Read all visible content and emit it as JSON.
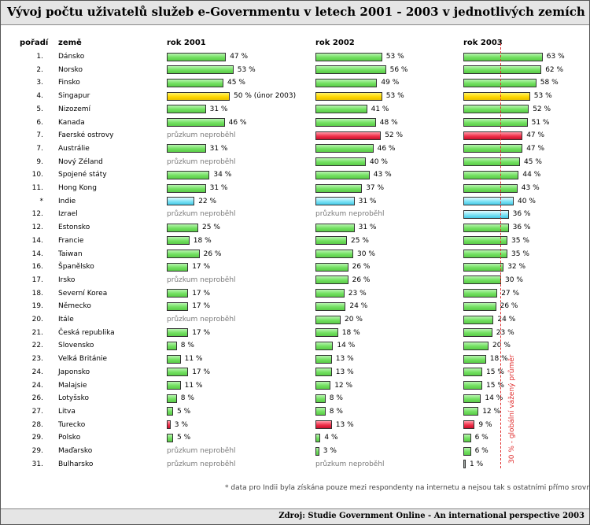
{
  "title": "Vývoj počtu uživatelů služeb e-Governmentu v letech 2001 - 2003 v jednotlivých zemích",
  "source": "Zdroj: Studie Government Online - An international perspective 2003",
  "footnote": "* data pro Indii byla získána pouze mezi respondenty na internetu a nejsou tak s ostatními přímo srovnatelná",
  "not_surveyed_label": "průzkum neproběhl",
  "colors": {
    "default": "#72e060",
    "singapore": "#ffd800",
    "highlight": "#f0304a",
    "india": "#7fe3f5",
    "minimal": "#9aa4a0",
    "average_line": "#e03030"
  },
  "chart_data": {
    "type": "bar",
    "title": "Vývoj počtu uživatelů služeb e-Governmentu v letech 2001 - 2003 v jednotlivých zemích",
    "headers": {
      "rank": "pořadí",
      "country": "země",
      "y2001": "rok 2001",
      "y2002": "rok 2002",
      "y2003": "rok 2003"
    },
    "unit": "%",
    "xlim": [
      0,
      70
    ],
    "average_line": {
      "value": 30,
      "label": "30 % - globální vážený průměr"
    },
    "rows": [
      {
        "rank": "1.",
        "country": "Dánsko",
        "color": "green",
        "v2001": 47,
        "v2002": 53,
        "v2003": 63
      },
      {
        "rank": "2.",
        "country": "Norsko",
        "color": "green",
        "v2001": 53,
        "v2002": 56,
        "v2003": 62
      },
      {
        "rank": "3.",
        "country": "Finsko",
        "color": "green",
        "v2001": 45,
        "v2002": 49,
        "v2003": 58
      },
      {
        "rank": "4.",
        "country": "Singapur",
        "color": "yellow",
        "v2001": 50,
        "note2001": "(únor 2003)",
        "v2002": 53,
        "v2003": 53
      },
      {
        "rank": "5.",
        "country": "Nizozemí",
        "color": "green",
        "v2001": 31,
        "v2002": 41,
        "v2003": 52
      },
      {
        "rank": "6.",
        "country": "Kanada",
        "color": "green",
        "v2001": 46,
        "v2002": 48,
        "v2003": 51
      },
      {
        "rank": "7.",
        "country": "Faerské ostrovy",
        "color": "red",
        "v2001": null,
        "v2002": 52,
        "v2003": 47
      },
      {
        "rank": "7.",
        "country": "Austrálie",
        "color": "green",
        "v2001": 31,
        "v2002": 46,
        "v2003": 47
      },
      {
        "rank": "9.",
        "country": "Nový Zéland",
        "color": "green",
        "v2001": null,
        "v2002": 40,
        "v2003": 45
      },
      {
        "rank": "10.",
        "country": "Spojené státy",
        "color": "green",
        "v2001": 34,
        "v2002": 43,
        "v2003": 44
      },
      {
        "rank": "11.",
        "country": "Hong Kong",
        "color": "green",
        "v2001": 31,
        "v2002": 37,
        "v2003": 43
      },
      {
        "rank": "*",
        "country": "Indie",
        "color": "cyan",
        "v2001": 22,
        "v2002": 31,
        "v2003": 40
      },
      {
        "rank": "12.",
        "country": "Izrael",
        "color": "cyan",
        "v2001": null,
        "v2002": null,
        "v2003": 36
      },
      {
        "rank": "12.",
        "country": "Estonsko",
        "color": "green",
        "v2001": 25,
        "v2002": 31,
        "v2003": 36
      },
      {
        "rank": "14.",
        "country": "Francie",
        "color": "green",
        "v2001": 18,
        "v2002": 25,
        "v2003": 35
      },
      {
        "rank": "14.",
        "country": "Taiwan",
        "color": "green",
        "v2001": 26,
        "v2002": 30,
        "v2003": 35
      },
      {
        "rank": "16.",
        "country": "Španělsko",
        "color": "green",
        "v2001": 17,
        "v2002": 26,
        "v2003": 32
      },
      {
        "rank": "17.",
        "country": "Irsko",
        "color": "green",
        "v2001": null,
        "v2002": 26,
        "v2003": 30
      },
      {
        "rank": "18.",
        "country": "Severní Korea",
        "color": "green",
        "v2001": 17,
        "v2002": 23,
        "v2003": 27
      },
      {
        "rank": "19.",
        "country": "Německo",
        "color": "green",
        "v2001": 17,
        "v2002": 24,
        "v2003": 26
      },
      {
        "rank": "20.",
        "country": "Itále",
        "color": "green",
        "v2001": null,
        "v2002": 20,
        "v2003": 24
      },
      {
        "rank": "21.",
        "country": "Česká republika",
        "color": "green",
        "v2001": 17,
        "v2002": 18,
        "v2003": 23
      },
      {
        "rank": "22.",
        "country": "Slovensko",
        "color": "green",
        "v2001": 8,
        "v2002": 14,
        "v2003": 20
      },
      {
        "rank": "23.",
        "country": "Velká Británie",
        "color": "green",
        "v2001": 11,
        "v2002": 13,
        "v2003": 18
      },
      {
        "rank": "24.",
        "country": "Japonsko",
        "color": "green",
        "v2001": 17,
        "v2002": 13,
        "v2003": 15
      },
      {
        "rank": "24.",
        "country": "Malajsie",
        "color": "green",
        "v2001": 11,
        "v2002": 12,
        "v2003": 15
      },
      {
        "rank": "26.",
        "country": "Lotyšsko",
        "color": "green",
        "v2001": 8,
        "v2002": 8,
        "v2003": 14
      },
      {
        "rank": "27.",
        "country": "Litva",
        "color": "green",
        "v2001": 5,
        "v2002": 8,
        "v2003": 12
      },
      {
        "rank": "28.",
        "country": "Turecko",
        "color": "red",
        "v2001": 3,
        "v2002": 13,
        "v2003": 9
      },
      {
        "rank": "29.",
        "country": "Polsko",
        "color": "green",
        "v2001": 5,
        "v2002": 4,
        "v2003": 6
      },
      {
        "rank": "29.",
        "country": "Maďarsko",
        "color": "green",
        "v2001": null,
        "v2002": 3,
        "v2003": 6
      },
      {
        "rank": "31.",
        "country": "Bulharsko",
        "color": "gray",
        "v2001": null,
        "v2002": null,
        "v2003": 1
      }
    ]
  }
}
